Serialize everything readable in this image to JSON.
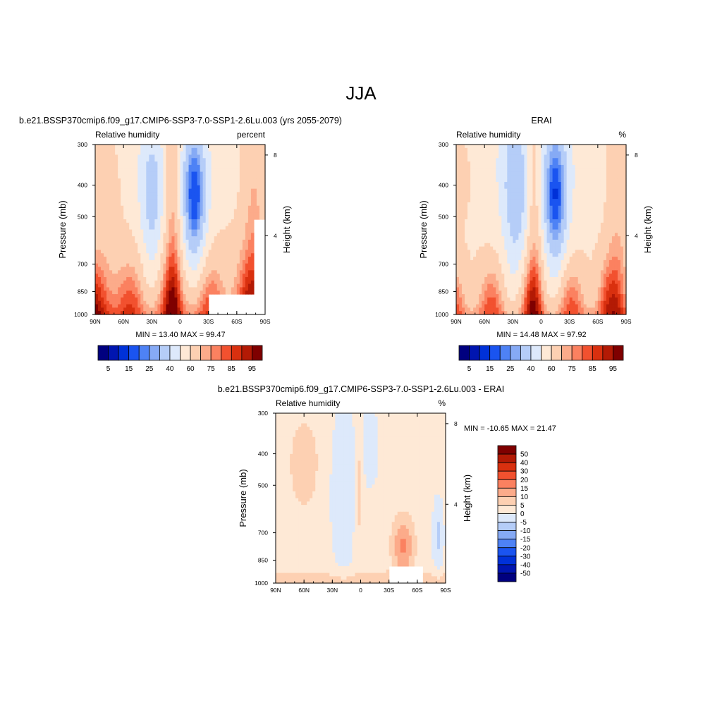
{
  "page": {
    "title": "JJA"
  },
  "colors": {
    "main_scale": [
      "#00007f",
      "#0015b0",
      "#0031d8",
      "#1a54f0",
      "#4e82f5",
      "#86aaf5",
      "#b5cdf8",
      "#dde9fb",
      "#fee9d6",
      "#fdd0b2",
      "#fcab8a",
      "#fb8160",
      "#f2512f",
      "#d9300f",
      "#b31a05",
      "#7f0000"
    ],
    "diff_scale": [
      "#00007f",
      "#0015b0",
      "#0031d8",
      "#1a54f0",
      "#4e82f5",
      "#86aaf5",
      "#b5cdf8",
      "#dde9fb",
      "#fee9d6",
      "#fdd0b2",
      "#fcab8a",
      "#fb8160",
      "#f2512f",
      "#d9300f",
      "#b31a05",
      "#7f0000"
    ]
  },
  "chart_data": [
    {
      "type": "heatmap",
      "panel_title": "b.e21.BSSP370cmip6.f09_g17.CMIP6-SSP3-7.0-SSP1-2.6Lu.003 (yrs 2055-2079)",
      "left_string": "Relative humidity",
      "right_string": "percent",
      "ylabel": "Pressure (mb)",
      "ylabel_right": "Height (km)",
      "x_ticks": [
        "90N",
        "60N",
        "30N",
        "0",
        "30S",
        "60S",
        "90S"
      ],
      "y_ticks": [
        "300",
        "400",
        "500",
        "700",
        "850",
        "1000"
      ],
      "y_right_ticks": [
        "8",
        "4"
      ],
      "stats": "MIN =  13.40   MAX =  99.47",
      "min": 13.4,
      "max": 99.47,
      "colorbar_labels": [
        "5",
        "15",
        "25",
        "40",
        "60",
        "75",
        "85",
        "95"
      ],
      "colorbar_levels": [
        5,
        10,
        15,
        20,
        25,
        30,
        40,
        50,
        60,
        70,
        75,
        80,
        85,
        90,
        95
      ]
    },
    {
      "type": "heatmap",
      "panel_title": "ERAI",
      "left_string": "Relative humidity",
      "right_string": "%",
      "ylabel": "Pressure (mb)",
      "ylabel_right": "Height (km)",
      "x_ticks": [
        "90N",
        "60N",
        "30N",
        "0",
        "30S",
        "60S",
        "90S"
      ],
      "y_ticks": [
        "300",
        "400",
        "500",
        "700",
        "850",
        "1000"
      ],
      "y_right_ticks": [
        "8",
        "4"
      ],
      "stats": "MIN =  14.48   MAX =  97.92",
      "min": 14.48,
      "max": 97.92,
      "colorbar_labels": [
        "5",
        "15",
        "25",
        "40",
        "60",
        "75",
        "85",
        "95"
      ],
      "colorbar_levels": [
        5,
        10,
        15,
        20,
        25,
        30,
        40,
        50,
        60,
        70,
        75,
        80,
        85,
        90,
        95
      ]
    },
    {
      "type": "heatmap",
      "panel_title": "b.e21.BSSP370cmip6.f09_g17.CMIP6-SSP3-7.0-SSP1-2.6Lu.003 - ERAI",
      "left_string": "Relative humidity",
      "right_string": "%",
      "ylabel": "Pressure (mb)",
      "ylabel_right": "Height (km)",
      "x_ticks": [
        "90N",
        "60N",
        "30N",
        "0",
        "30S",
        "60S",
        "90S"
      ],
      "y_ticks": [
        "300",
        "400",
        "500",
        "700",
        "850",
        "1000"
      ],
      "y_right_ticks": [
        "8",
        "4"
      ],
      "stats": "MIN = -10.65   MAX =  21.47",
      "min": -10.65,
      "max": 21.47,
      "colorbar_labels": [
        "50",
        "40",
        "30",
        "20",
        "15",
        "10",
        "5",
        "0",
        "-5",
        "-10",
        "-15",
        "-20",
        "-30",
        "-40",
        "-50"
      ]
    }
  ]
}
